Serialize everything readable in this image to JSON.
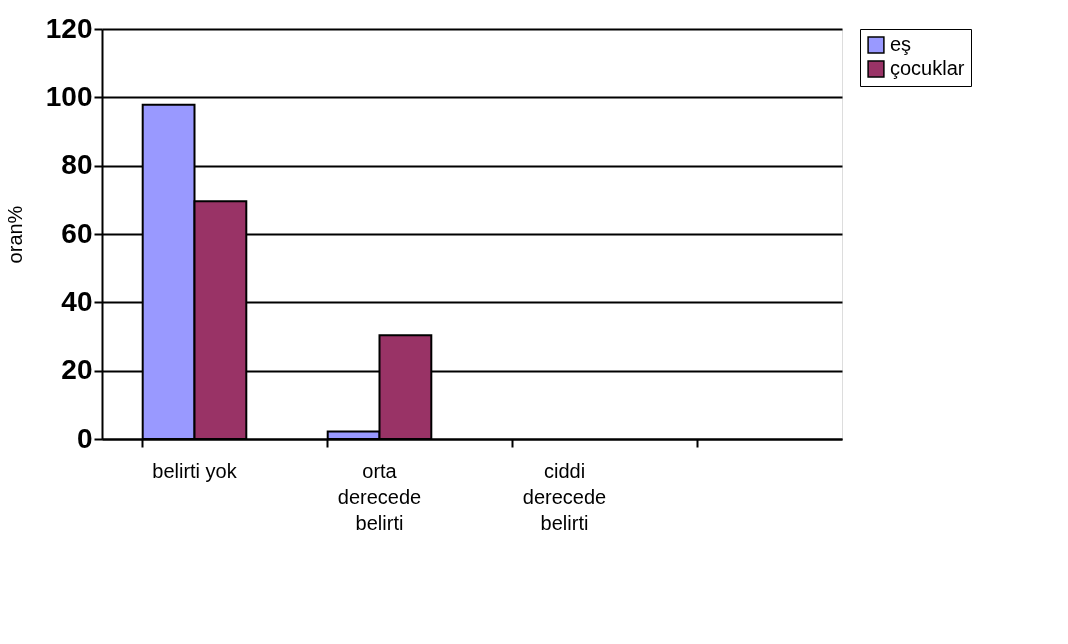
{
  "chart_data": {
    "type": "bar",
    "ylabel": "oran%",
    "categories": [
      "belirti yok",
      "orta derecede belirti",
      "ciddi derecede belirti",
      null
    ],
    "series": [
      {
        "name": "eş",
        "color": "#9999ff",
        "values": [
          97.8,
          2.2,
          null,
          null
        ]
      },
      {
        "name": "çocuklar",
        "color": "#993366",
        "values": [
          69.6,
          30.4,
          null,
          null
        ]
      }
    ],
    "ylim": [
      0,
      120
    ],
    "yticks": [
      0,
      20,
      40,
      60,
      80,
      100,
      120
    ],
    "grid": "y",
    "legend": "right"
  }
}
